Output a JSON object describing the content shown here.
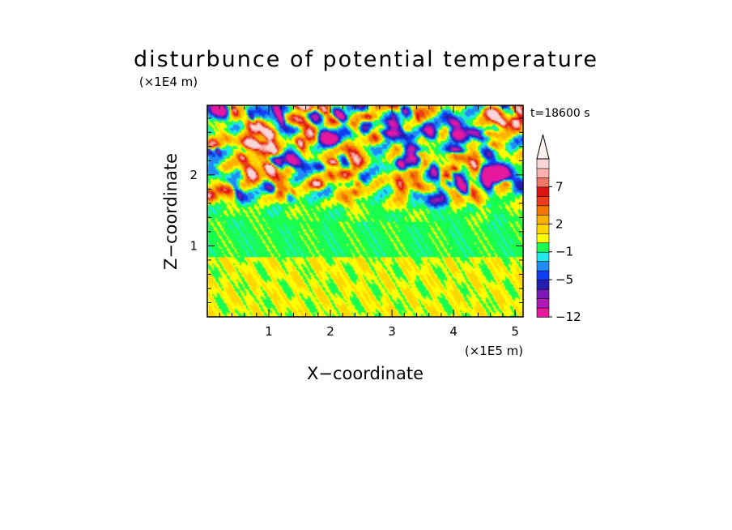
{
  "chart_data": {
    "type": "heatmap",
    "title": "disturbunce of potential temperature",
    "time_label": "t=18600 s",
    "xlabel": "X−coordinate",
    "ylabel": "Z−coordinate",
    "x_unit": "(×1E5 m)",
    "y_unit": "(×1E4 m)",
    "xlim": [
      0,
      5.13
    ],
    "ylim": [
      0,
      2.98
    ],
    "x_ticks": [
      {
        "value": 1,
        "label": "1"
      },
      {
        "value": 2,
        "label": "2"
      },
      {
        "value": 3,
        "label": "3"
      },
      {
        "value": 4,
        "label": "4"
      },
      {
        "value": 5,
        "label": "5"
      }
    ],
    "y_ticks": [
      {
        "value": 1,
        "label": "1"
      },
      {
        "value": 2,
        "label": "2"
      }
    ],
    "colorbar": {
      "levels": [
        -12,
        -10,
        -8,
        -6.5,
        -5,
        -3.5,
        -2,
        -1,
        0,
        1,
        2,
        3.5,
        5,
        6,
        7,
        8,
        9,
        10
      ],
      "colors": [
        "#e6199e",
        "#b01ab8",
        "#7a1ab6",
        "#241fb0",
        "#0f3ff0",
        "#1f8bf3",
        "#20e8e8",
        "#19ff50",
        "#ffff00",
        "#ffd700",
        "#ffb000",
        "#f07800",
        "#ec3c1c",
        "#dc1414",
        "#f07868",
        "#fcb0b0",
        "#fbd6d6"
      ],
      "labels": [
        {
          "value": -12,
          "label": "−12"
        },
        {
          "value": -5,
          "label": "−5"
        },
        {
          "value": -1,
          "label": "−1"
        },
        {
          "value": 2,
          "label": "2"
        },
        {
          "value": 7,
          "label": "7"
        }
      ],
      "extend": "max"
    }
  }
}
